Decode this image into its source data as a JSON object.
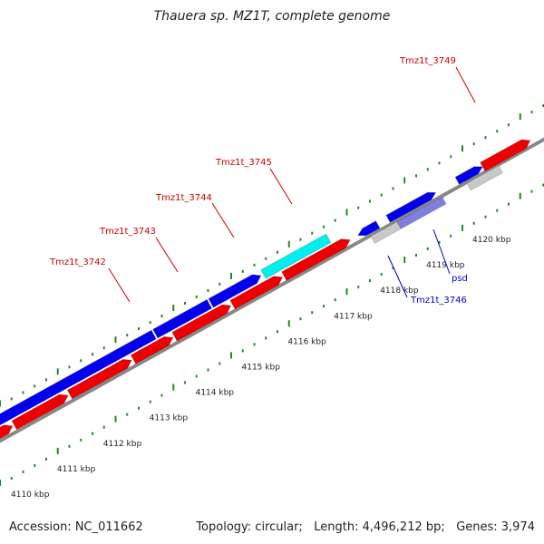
{
  "title": "Thauera sp. MZ1T, complete genome",
  "footer": {
    "accession": "Accession: NC_011662",
    "topology": "Topology: circular;",
    "length": "Length: 4,496,212 bp;",
    "genes": "Genes: 3,974"
  },
  "colors": {
    "forward": "#0000ee",
    "reverse": "#ee0000",
    "highlight": "#00eeee",
    "rna": "#c8c8c8",
    "psd": "#7f7fdd",
    "tick": "#228822",
    "backbone": "#888888",
    "label_red": "#cc0000",
    "label_blue": "#0000cc"
  },
  "scale_labels": [
    {
      "label": "4110 kbp",
      "kbp": 4110
    },
    {
      "label": "4111 kbp",
      "kbp": 4111
    },
    {
      "label": "4112 kbp",
      "kbp": 4112
    },
    {
      "label": "4113 kbp",
      "kbp": 4113
    },
    {
      "label": "4114 kbp",
      "kbp": 4114
    },
    {
      "label": "4115 kbp",
      "kbp": 4115
    },
    {
      "label": "4116 kbp",
      "kbp": 4116
    },
    {
      "label": "4117 kbp",
      "kbp": 4117
    },
    {
      "label": "4118 kbp",
      "kbp": 4118
    },
    {
      "label": "4119 kbp",
      "kbp": 4119
    },
    {
      "label": "4120 kbp",
      "kbp": 4120
    }
  ],
  "gene_labels": [
    {
      "text": "Tmz1t_3742",
      "color": "label_red"
    },
    {
      "text": "Tmz1t_3743",
      "color": "label_red"
    },
    {
      "text": "Tmz1t_3744",
      "color": "label_red"
    },
    {
      "text": "Tmz1t_3745",
      "color": "label_red"
    },
    {
      "text": "Tmz1t_3749",
      "color": "label_red"
    },
    {
      "text": "Tmz1t_3746",
      "color": "label_blue"
    },
    {
      "text": "psd",
      "color": "label_blue"
    }
  ]
}
